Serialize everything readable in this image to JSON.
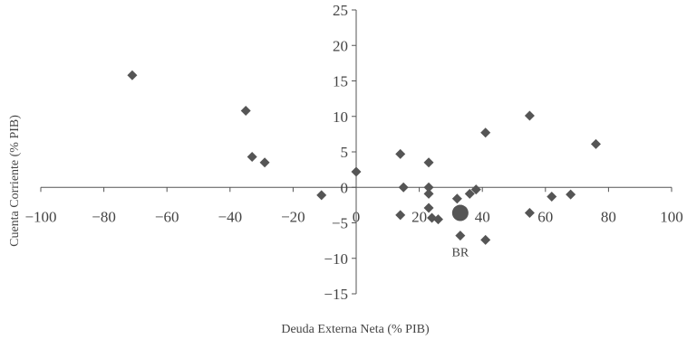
{
  "chart_data": {
    "type": "scatter",
    "title": "",
    "xlabel": "Deuda Externa Neta (% PIB)",
    "ylabel": "Cuenta Corriente (% PIB)",
    "xlim": [
      -100,
      100
    ],
    "ylim": [
      -15,
      25
    ],
    "x_ticks": [
      -100,
      -80,
      -60,
      -40,
      -20,
      0,
      20,
      40,
      60,
      80,
      100
    ],
    "y_ticks": [
      -15,
      -10,
      -5,
      0,
      5,
      10,
      15,
      20,
      25
    ],
    "x_tick_labels": [
      "−100",
      "−80",
      "−60",
      "−40",
      "−20",
      "0",
      "20",
      "40",
      "60",
      "80",
      "100"
    ],
    "y_tick_labels": [
      "−15",
      "−10",
      "−5",
      "0",
      "5",
      "10",
      "15",
      "20",
      "25"
    ],
    "marker": "diamond",
    "color": "#555555",
    "points": [
      {
        "x": -71,
        "y": 15.8
      },
      {
        "x": -35,
        "y": 10.8
      },
      {
        "x": -33,
        "y": 4.3
      },
      {
        "x": -29,
        "y": 3.5
      },
      {
        "x": -11,
        "y": -1.1
      },
      {
        "x": 0,
        "y": 2.2
      },
      {
        "x": 14,
        "y": 4.7
      },
      {
        "x": 14,
        "y": -3.9
      },
      {
        "x": 15,
        "y": 0.0
      },
      {
        "x": 23,
        "y": 3.5
      },
      {
        "x": 23,
        "y": 0.0
      },
      {
        "x": 23,
        "y": -0.9
      },
      {
        "x": 23,
        "y": -2.9
      },
      {
        "x": 24,
        "y": -4.3
      },
      {
        "x": 26,
        "y": -4.5
      },
      {
        "x": 32,
        "y": -1.6
      },
      {
        "x": 33,
        "y": -6.8
      },
      {
        "x": 36,
        "y": -0.9
      },
      {
        "x": 38,
        "y": -0.3
      },
      {
        "x": 41,
        "y": 7.7
      },
      {
        "x": 41,
        "y": -7.4
      },
      {
        "x": 55,
        "y": 10.1
      },
      {
        "x": 55,
        "y": -3.6
      },
      {
        "x": 62,
        "y": -1.3
      },
      {
        "x": 68,
        "y": -1.0
      },
      {
        "x": 76,
        "y": 6.1
      }
    ],
    "highlight": {
      "label": "BR",
      "x": 33,
      "y": -3.6
    }
  }
}
